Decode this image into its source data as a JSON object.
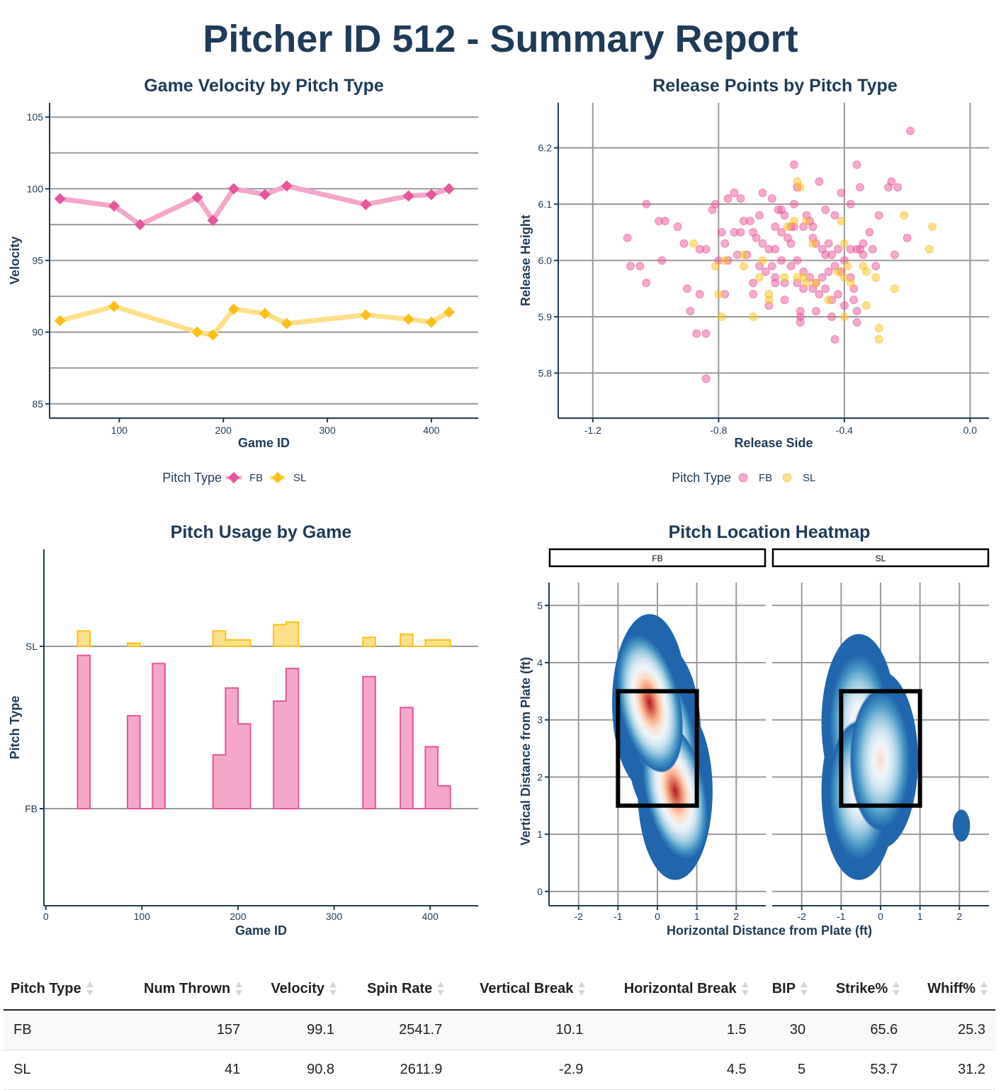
{
  "title": "Pitcher ID 512 - Summary Report",
  "colors": {
    "fb": "#e7559a",
    "sl": "#fbbf1b",
    "fb_light": "#f4a7c9",
    "sl_light": "#fde08a",
    "text": "#1f3b57"
  },
  "legend": {
    "label": "Pitch Type",
    "items": [
      "FB",
      "SL"
    ]
  },
  "chart_data": [
    {
      "id": "velocity",
      "type": "line",
      "title": "Game Velocity by Pitch Type",
      "xlabel": "Game ID",
      "ylabel": "Velocity",
      "xlim": [
        33,
        445
      ],
      "ylim": [
        84,
        106
      ],
      "x_ticks": [
        100,
        200,
        300,
        400
      ],
      "y_ticks": [
        85,
        90,
        95,
        100,
        105
      ],
      "grid": "horizontal",
      "legend_position": "bottom",
      "series": [
        {
          "name": "FB",
          "x": [
            43,
            95,
            120,
            175,
            190,
            210,
            240,
            261,
            337,
            378,
            400,
            417
          ],
          "values": [
            99.3,
            98.8,
            97.5,
            99.4,
            97.8,
            100.0,
            99.6,
            100.2,
            98.9,
            99.5,
            99.6,
            100.0
          ]
        },
        {
          "name": "SL",
          "x": [
            43,
            95,
            175,
            190,
            210,
            240,
            261,
            337,
            378,
            400,
            417
          ],
          "values": [
            90.8,
            91.8,
            90.0,
            89.8,
            91.6,
            91.3,
            90.6,
            91.2,
            90.9,
            90.7,
            91.4
          ]
        }
      ]
    },
    {
      "id": "release",
      "type": "scatter",
      "title": "Release Points by Pitch Type",
      "xlabel": "Release Side",
      "ylabel": "Release Height",
      "xlim": [
        -1.31,
        0.06
      ],
      "ylim": [
        5.72,
        6.28
      ],
      "x_ticks": [
        -1.2,
        -0.8,
        -0.4,
        0.0
      ],
      "x_tick_labels": [
        "-1.2",
        "-0.8",
        "-0.4",
        "0.0"
      ],
      "y_ticks": [
        5.8,
        5.9,
        6.0,
        6.1,
        6.2
      ],
      "y_tick_labels": [
        "5.8",
        "5.9",
        "6.0",
        "6.1",
        "6.2"
      ],
      "grid": "both",
      "legend_position": "bottom",
      "series": [
        {
          "name": "FB",
          "points": [
            [
              -0.19,
              6.23
            ],
            [
              -1.03,
              6.1
            ],
            [
              -0.81,
              6.1
            ],
            [
              -0.82,
              6.09
            ],
            [
              -0.77,
              6.11
            ],
            [
              -0.75,
              6.12
            ],
            [
              -0.7,
              6.07
            ],
            [
              -0.67,
              6.08
            ],
            [
              -0.66,
              6.12
            ],
            [
              -0.63,
              6.11
            ],
            [
              -0.61,
              6.09
            ],
            [
              -0.59,
              6.08
            ],
            [
              -0.56,
              6.1
            ],
            [
              -0.55,
              6.13
            ],
            [
              -0.56,
              6.17
            ],
            [
              -0.5,
              6.06
            ],
            [
              -0.48,
              6.14
            ],
            [
              -0.46,
              6.09
            ],
            [
              -0.43,
              6.08
            ],
            [
              -0.41,
              6.12
            ],
            [
              -0.38,
              6.1
            ],
            [
              -0.36,
              6.17
            ],
            [
              -0.35,
              6.13
            ],
            [
              -0.32,
              6.05
            ],
            [
              -0.29,
              6.08
            ],
            [
              -0.26,
              6.13
            ],
            [
              -0.25,
              6.14
            ],
            [
              -0.23,
              6.13
            ],
            [
              -0.2,
              6.04
            ],
            [
              -0.24,
              6.01
            ],
            [
              -0.3,
              5.99
            ],
            [
              -0.34,
              6.01
            ],
            [
              -0.99,
              6.07
            ],
            [
              -0.97,
              6.07
            ],
            [
              -0.93,
              6.06
            ],
            [
              -1.09,
              6.04
            ],
            [
              -1.05,
              5.99
            ],
            [
              -1.08,
              5.99
            ],
            [
              -1.03,
              5.96
            ],
            [
              -0.98,
              6.0
            ],
            [
              -0.91,
              6.03
            ],
            [
              -0.86,
              6.02
            ],
            [
              -0.84,
              6.02
            ],
            [
              -0.79,
              6.05
            ],
            [
              -0.78,
              6.03
            ],
            [
              -0.75,
              6.05
            ],
            [
              -0.73,
              6.05
            ],
            [
              -0.72,
              6.07
            ],
            [
              -0.69,
              6.05
            ],
            [
              -0.68,
              6.04
            ],
            [
              -0.66,
              6.03
            ],
            [
              -0.64,
              6.02
            ],
            [
              -0.62,
              6.02
            ],
            [
              -0.6,
              6.05
            ],
            [
              -0.58,
              6.04
            ],
            [
              -0.57,
              6.03
            ],
            [
              -0.53,
              6.06
            ],
            [
              -0.51,
              6.07
            ],
            [
              -0.5,
              6.04
            ],
            [
              -0.49,
              6.03
            ],
            [
              -0.46,
              6.01
            ],
            [
              -0.45,
              6.03
            ],
            [
              -0.44,
              6.01
            ],
            [
              -0.42,
              6.02
            ],
            [
              -0.4,
              6.0
            ],
            [
              -0.38,
              6.02
            ],
            [
              -0.36,
              6.02
            ],
            [
              -0.34,
              6.03
            ],
            [
              -0.31,
              6.02
            ],
            [
              -0.8,
              6.0
            ],
            [
              -0.77,
              6.0
            ],
            [
              -0.74,
              6.01
            ],
            [
              -0.71,
              6.01
            ],
            [
              -0.67,
              5.99
            ],
            [
              -0.65,
              5.98
            ],
            [
              -0.63,
              5.99
            ],
            [
              -0.6,
              6.0
            ],
            [
              -0.57,
              5.99
            ],
            [
              -0.55,
              6.0
            ],
            [
              -0.53,
              5.98
            ],
            [
              -0.51,
              5.97
            ],
            [
              -0.49,
              5.96
            ],
            [
              -0.47,
              5.97
            ],
            [
              -0.45,
              5.98
            ],
            [
              -0.43,
              5.99
            ],
            [
              -0.41,
              5.98
            ],
            [
              -0.38,
              5.97
            ],
            [
              -0.69,
              5.96
            ],
            [
              -0.62,
              5.97
            ],
            [
              -0.59,
              5.96
            ],
            [
              -0.55,
              5.96
            ],
            [
              -0.53,
              5.95
            ],
            [
              -0.5,
              5.95
            ],
            [
              -0.48,
              5.94
            ],
            [
              -0.46,
              5.95
            ],
            [
              -0.44,
              5.93
            ],
            [
              -0.42,
              5.94
            ],
            [
              -0.4,
              5.92
            ],
            [
              -0.37,
              5.95
            ],
            [
              -0.37,
              5.93
            ],
            [
              -0.9,
              5.95
            ],
            [
              -0.86,
              5.94
            ],
            [
              -0.78,
              5.94
            ],
            [
              -0.69,
              5.94
            ],
            [
              -0.64,
              5.92
            ],
            [
              -0.59,
              5.93
            ],
            [
              -0.54,
              5.91
            ],
            [
              -0.54,
              5.9
            ],
            [
              -0.54,
              5.89
            ],
            [
              -0.49,
              5.91
            ],
            [
              -0.44,
              5.9
            ],
            [
              -0.36,
              5.91
            ],
            [
              -0.89,
              5.91
            ],
            [
              -0.87,
              5.87
            ],
            [
              -0.84,
              5.87
            ],
            [
              -0.43,
              5.86
            ],
            [
              -0.36,
              5.89
            ],
            [
              -0.84,
              5.79
            ],
            [
              -0.62,
              5.96
            ],
            [
              -0.57,
              6.06
            ],
            [
              -0.6,
              6.09
            ],
            [
              -0.52,
              6.08
            ],
            [
              -0.47,
              6.02
            ],
            [
              -0.35,
              6.02
            ],
            [
              -0.73,
              6.11
            ],
            [
              -0.62,
              6.06
            ],
            [
              -0.56,
              6.06
            ]
          ]
        },
        {
          "name": "SL",
          "points": [
            [
              -0.55,
              6.14
            ],
            [
              -0.54,
              6.13
            ],
            [
              -0.58,
              6.06
            ],
            [
              -0.56,
              6.07
            ],
            [
              -0.52,
              6.07
            ],
            [
              -0.5,
              6.03
            ],
            [
              -0.4,
              6.03
            ],
            [
              -0.41,
              6.07
            ],
            [
              -0.21,
              6.08
            ],
            [
              -0.12,
              6.06
            ],
            [
              -0.13,
              6.02
            ],
            [
              -0.88,
              6.03
            ],
            [
              -0.81,
              5.99
            ],
            [
              -0.78,
              6.0
            ],
            [
              -0.72,
              6.01
            ],
            [
              -0.72,
              5.99
            ],
            [
              -0.66,
              6.0
            ],
            [
              -0.67,
              5.97
            ],
            [
              -0.59,
              5.97
            ],
            [
              -0.55,
              5.97
            ],
            [
              -0.52,
              5.96
            ],
            [
              -0.49,
              5.96
            ],
            [
              -0.42,
              5.98
            ],
            [
              -0.4,
              5.97
            ],
            [
              -0.38,
              5.96
            ],
            [
              -0.34,
              5.99
            ],
            [
              -0.33,
              5.98
            ],
            [
              -0.3,
              5.97
            ],
            [
              -0.24,
              5.95
            ],
            [
              -0.8,
              5.94
            ],
            [
              -0.64,
              5.94
            ],
            [
              -0.64,
              5.93
            ],
            [
              -0.79,
              5.9
            ],
            [
              -0.69,
              5.9
            ],
            [
              -0.45,
              5.93
            ],
            [
              -0.4,
              5.9
            ],
            [
              -0.33,
              5.92
            ],
            [
              -0.29,
              5.88
            ],
            [
              -0.29,
              5.86
            ],
            [
              -0.53,
              5.97
            ],
            [
              -0.39,
              5.99
            ]
          ]
        }
      ]
    },
    {
      "id": "usage",
      "type": "area",
      "title": "Pitch Usage by Game",
      "xlabel": "Game ID",
      "ylabel": "Pitch Type",
      "xlim": [
        -2,
        450
      ],
      "x_ticks": [
        0,
        100,
        200,
        300,
        400
      ],
      "categories": [
        "FB",
        "SL"
      ],
      "bin_width": 13,
      "legend_position": "none",
      "series": [
        {
          "name": "FB",
          "bins": [
            [
              33,
              0.94
            ],
            [
              85,
              0.57
            ],
            [
              98,
              0.0
            ],
            [
              111,
              0.89
            ],
            [
              174,
              0.33
            ],
            [
              187,
              0.74
            ],
            [
              200,
              0.52
            ],
            [
              237,
              0.66
            ],
            [
              250,
              0.86
            ],
            [
              330,
              0.81
            ],
            [
              369,
              0.62
            ],
            [
              382,
              0.0
            ],
            [
              395,
              0.38
            ],
            [
              408,
              0.14
            ]
          ]
        },
        {
          "name": "SL",
          "bins": [
            [
              33,
              0.24
            ],
            [
              85,
              0.05
            ],
            [
              174,
              0.24
            ],
            [
              187,
              0.1
            ],
            [
              200,
              0.1
            ],
            [
              237,
              0.34
            ],
            [
              250,
              0.38
            ],
            [
              330,
              0.14
            ],
            [
              369,
              0.19
            ],
            [
              382,
              0.0
            ],
            [
              395,
              0.1
            ],
            [
              408,
              0.1
            ]
          ]
        }
      ]
    },
    {
      "id": "heatmap",
      "type": "heatmap",
      "title": "Pitch Location Heatmap",
      "xlabel": "Horizontal Distance from Plate (ft)",
      "ylabel": "Vertical Distance from Plate (ft)",
      "xlim": [
        -2.75,
        2.75
      ],
      "ylim": [
        -0.25,
        5.4
      ],
      "x_ticks": [
        -2,
        -1,
        0,
        1,
        2
      ],
      "y_ticks": [
        0,
        1,
        2,
        3,
        4,
        5
      ],
      "strike_zone": {
        "x": [
          -1.0,
          1.0
        ],
        "y": [
          1.5,
          3.5
        ]
      },
      "facets": [
        {
          "label": "FB",
          "centers": [
            [
              0.15,
              2.75
            ],
            [
              0.45,
              1.75
            ],
            [
              -0.2,
              3.3
            ]
          ]
        },
        {
          "label": "SL",
          "centers": [
            [
              -0.55,
              2.95
            ],
            [
              -0.55,
              1.75
            ],
            [
              0.0,
              2.3
            ],
            [
              2.05,
              1.15
            ]
          ]
        }
      ]
    }
  ],
  "table": {
    "headers": [
      "Pitch Type",
      "Num Thrown",
      "Velocity",
      "Spin Rate",
      "Vertical Break",
      "Horizontal Break",
      "BIP",
      "Strike%",
      "Whiff%"
    ],
    "rows": [
      [
        "FB",
        "157",
        "99.1",
        "2541.7",
        "10.1",
        "1.5",
        "30",
        "65.6",
        "25.3"
      ],
      [
        "SL",
        "41",
        "90.8",
        "2611.9",
        "-2.9",
        "4.5",
        "5",
        "53.7",
        "31.2"
      ]
    ]
  }
}
